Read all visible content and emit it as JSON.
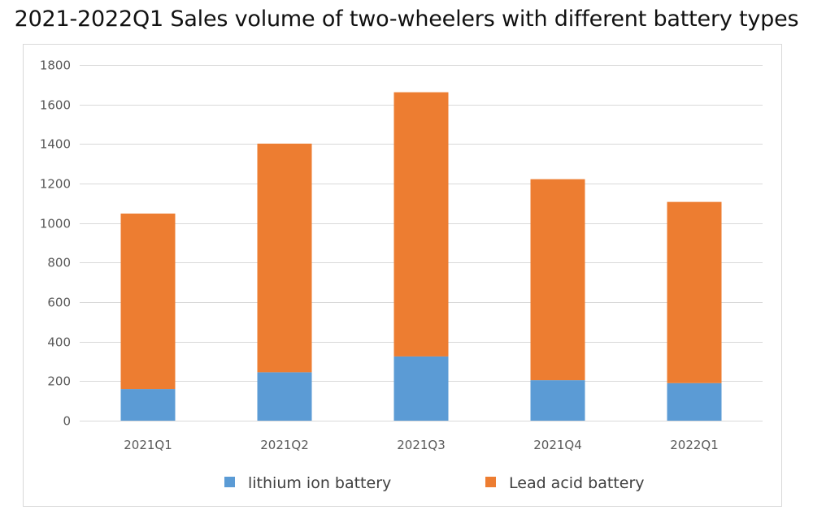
{
  "chart_data": {
    "type": "bar",
    "stacked": true,
    "title": "2021-2022Q1 Sales volume of two-wheelers with different battery types",
    "xlabel": "",
    "ylabel": "",
    "categories": [
      "2021Q1",
      "2021Q2",
      "2021Q3",
      "2021Q4",
      "2022Q1"
    ],
    "series": [
      {
        "name": "lithium ion battery",
        "values": [
          160,
          245,
          325,
          205,
          190
        ],
        "color": "#5b9bd5"
      },
      {
        "name": "Lead acid battery",
        "values": [
          888,
          1157,
          1337,
          1017,
          917
        ],
        "color": "#ed7d31"
      }
    ],
    "ylim": [
      0,
      1800
    ],
    "yticks": [
      0,
      200,
      400,
      600,
      800,
      1000,
      1200,
      1400,
      1600,
      1800
    ],
    "grid": true,
    "legend": "bottom"
  }
}
